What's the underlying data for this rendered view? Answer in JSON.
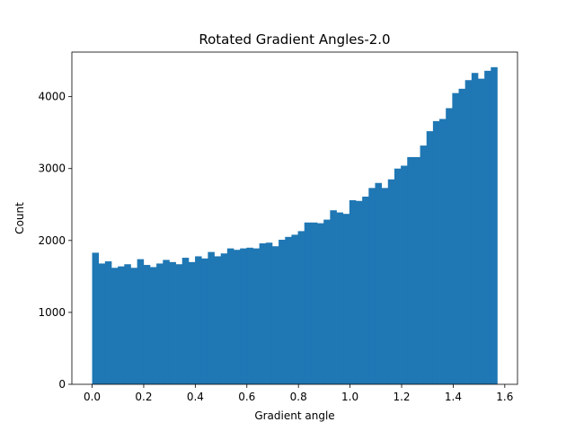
{
  "chart_data": {
    "type": "bar",
    "title": "Rotated Gradient Angles-2.0",
    "xlabel": "Gradient angle",
    "ylabel": "Count",
    "xlim": [
      -0.0785,
      1.6493
    ],
    "ylim": [
      0,
      4620
    ],
    "x_ticks": [
      0.0,
      0.2,
      0.4,
      0.6,
      0.8,
      1.0,
      1.2,
      1.4,
      1.6
    ],
    "x_tick_labels": [
      "0.0",
      "0.2",
      "0.4",
      "0.6",
      "0.8",
      "1.0",
      "1.2",
      "1.4",
      "1.6"
    ],
    "y_ticks": [
      0,
      1000,
      2000,
      3000,
      4000
    ],
    "y_tick_labels": [
      "0",
      "1000",
      "2000",
      "3000",
      "4000"
    ],
    "bin_range": [
      0.0,
      1.5708
    ],
    "bar_color": "#1f77b4",
    "values": [
      1830,
      1680,
      1710,
      1620,
      1640,
      1670,
      1620,
      1740,
      1660,
      1630,
      1680,
      1730,
      1700,
      1670,
      1760,
      1700,
      1780,
      1750,
      1840,
      1780,
      1820,
      1890,
      1870,
      1890,
      1900,
      1890,
      1960,
      1970,
      1920,
      2010,
      2050,
      2080,
      2130,
      2250,
      2250,
      2240,
      2290,
      2420,
      2390,
      2370,
      2560,
      2550,
      2610,
      2730,
      2800,
      2730,
      2850,
      3000,
      3040,
      3160,
      3160,
      3320,
      3520,
      3660,
      3690,
      3840,
      4050,
      4110,
      4230,
      4330,
      4250,
      4360,
      4410
    ]
  }
}
